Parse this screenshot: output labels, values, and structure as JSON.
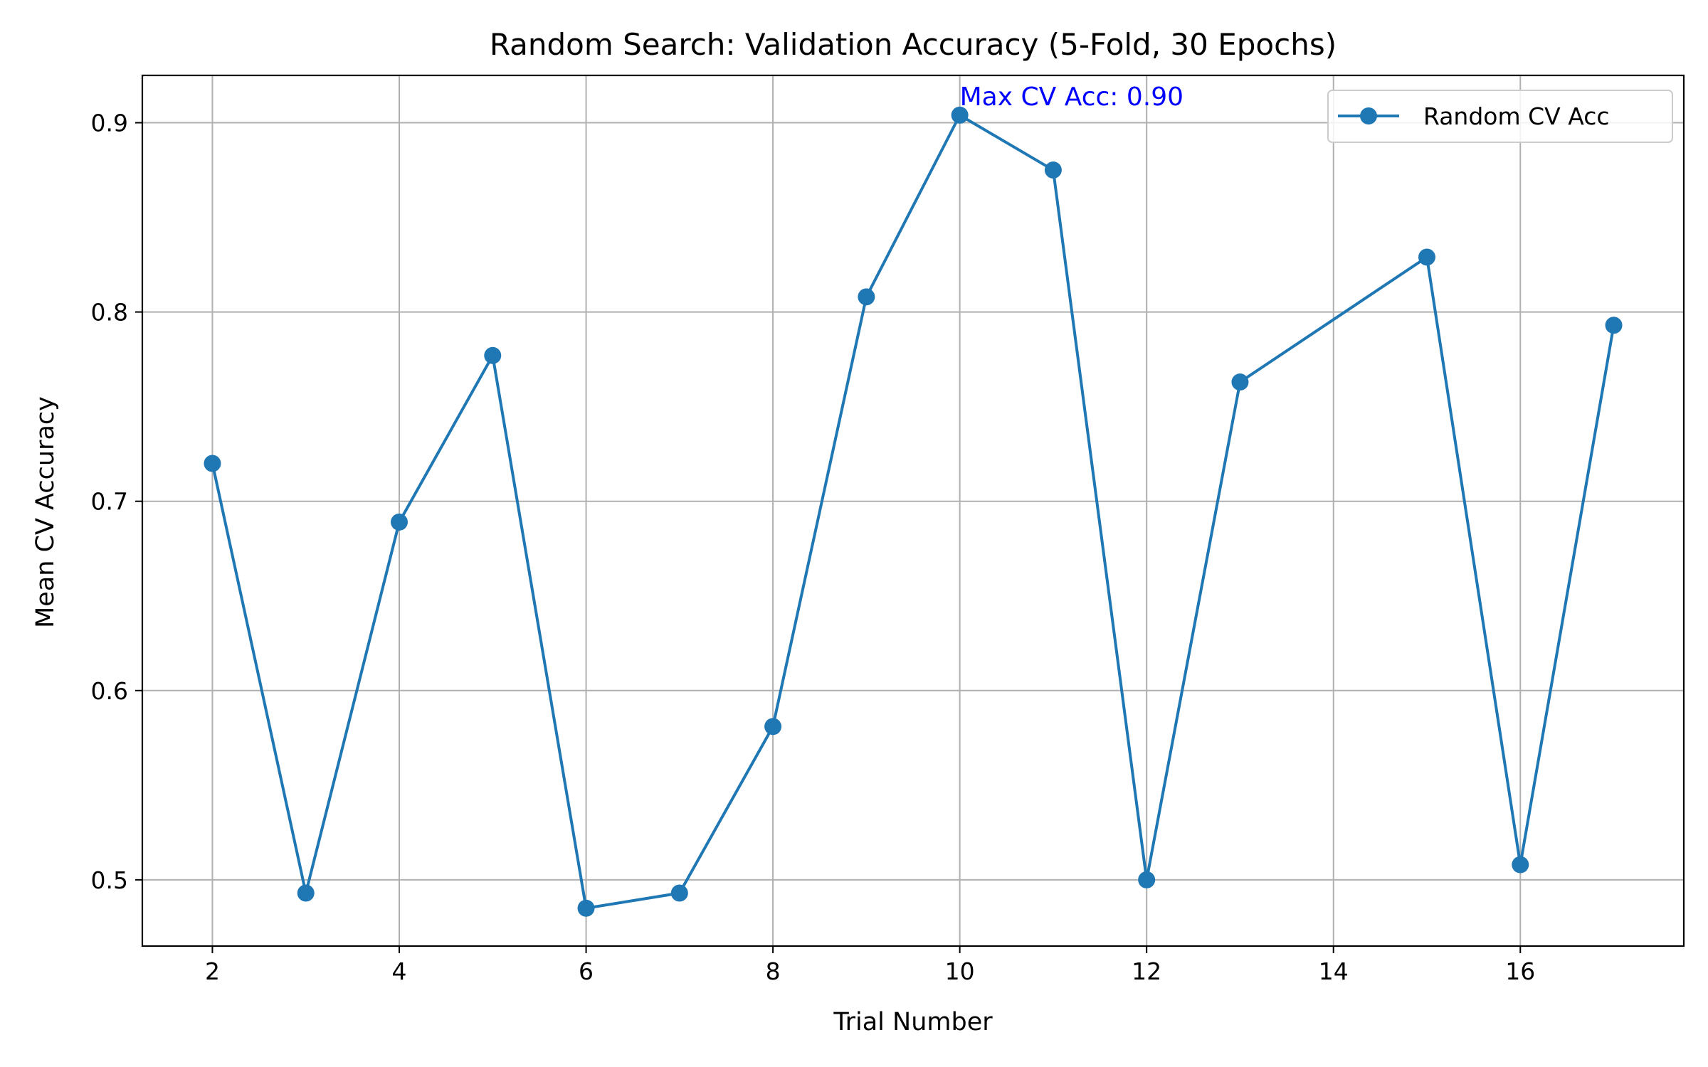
{
  "chart_data": {
    "type": "line",
    "title": "Random Search: Validation Accuracy (5-Fold, 30 Epochs)",
    "xlabel": "Trial Number",
    "ylabel": "Mean CV Accuracy",
    "xlim": [
      1.25,
      17.75
    ],
    "ylim": [
      0.465,
      0.925
    ],
    "xticks": [
      2,
      4,
      6,
      8,
      10,
      12,
      14,
      16
    ],
    "yticks": [
      0.5,
      0.6,
      0.7,
      0.8,
      0.9
    ],
    "xtick_labels": [
      "2",
      "4",
      "6",
      "8",
      "10",
      "12",
      "14",
      "16"
    ],
    "ytick_labels": [
      "0.5",
      "0.6",
      "0.7",
      "0.8",
      "0.9"
    ],
    "grid": true,
    "legend_position": "upper right",
    "series": [
      {
        "name": "Random CV Acc",
        "color": "#1f77b4",
        "marker": "circle",
        "x": [
          2,
          3,
          4,
          5,
          6,
          7,
          8,
          9,
          10,
          11,
          12,
          13,
          15,
          16,
          17
        ],
        "y": [
          0.72,
          0.493,
          0.689,
          0.777,
          0.485,
          0.493,
          0.581,
          0.808,
          0.904,
          0.875,
          0.5,
          0.763,
          0.829,
          0.508,
          0.793
        ]
      }
    ],
    "annotations": [
      {
        "text": "Max CV Acc: 0.90",
        "x": 10,
        "y": 0.904,
        "color": "#0000ff"
      }
    ]
  }
}
